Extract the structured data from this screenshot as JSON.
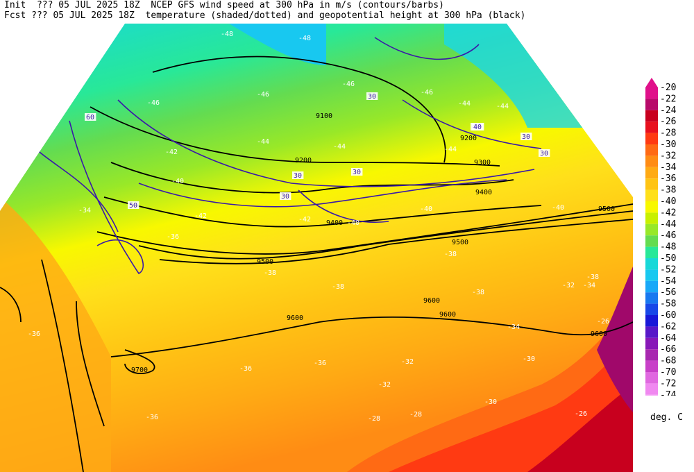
{
  "header": {
    "line1": "Init  ??? 05 JUL 2025 18Z  NCEP GFS wind speed at 300 hPa in m/s (contours/barbs)",
    "line2": "Fcst ??? 05 JUL 2025 18Z  temperature (shaded/dotted) and geopotential height at 300 hPa (black)"
  },
  "colorbar": {
    "unit": "deg. C",
    "levels": [
      "-20",
      "-22",
      "-24",
      "-26",
      "-28",
      "-30",
      "-32",
      "-34",
      "-36",
      "-38",
      "-40",
      "-42",
      "-44",
      "-46",
      "-48",
      "-50",
      "-52",
      "-54",
      "-56",
      "-58",
      "-60",
      "-62",
      "-64",
      "-66",
      "-68",
      "-70",
      "-72",
      "-74"
    ],
    "colors": [
      "#e0108a",
      "#b80a6a",
      "#c8001e",
      "#e8101e",
      "#ff3a12",
      "#ff6a14",
      "#ff8c14",
      "#ffaa14",
      "#ffc414",
      "#ffe01a",
      "#f8f800",
      "#c8f000",
      "#98e828",
      "#64dc50",
      "#28e898",
      "#18d8d8",
      "#18c8f0",
      "#18a8f8",
      "#1878f0",
      "#1848e8",
      "#1818d8",
      "#5818c8",
      "#8818b8",
      "#a828b0",
      "#c840c8",
      "#e068e0",
      "#f088f0",
      "#f8a8f8"
    ]
  },
  "map": {
    "height_labels": [
      "9100",
      "9200",
      "9200",
      "9300",
      "9400",
      "9400",
      "9500",
      "9500",
      "9500",
      "9600",
      "9600",
      "9600",
      "9600",
      "9700"
    ],
    "wind_labels": [
      "30",
      "30",
      "30",
      "30",
      "30",
      "30",
      "30",
      "40",
      "40",
      "50",
      "60"
    ],
    "temp_labels": [
      "-48",
      "-48",
      "-46",
      "-46",
      "-46",
      "-46",
      "-44",
      "-44",
      "-44",
      "-44",
      "-44",
      "-42",
      "-42",
      "-42",
      "-40",
      "-40",
      "-40",
      "-40",
      "-38",
      "-38",
      "-38",
      "-38",
      "-38",
      "-36",
      "-36",
      "-36",
      "-36",
      "-36",
      "-34",
      "-34",
      "-34",
      "-32",
      "-32",
      "-32",
      "-30",
      "-30",
      "-28",
      "-28",
      "-26",
      "-26"
    ]
  }
}
